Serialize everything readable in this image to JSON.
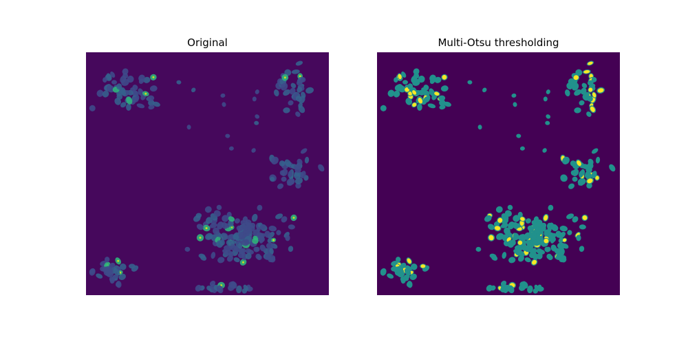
{
  "figure": {
    "panels": [
      {
        "title": "Original",
        "image": "fluorescence-nuclei-micrograph-viridis"
      },
      {
        "title": "Multi-Otsu thresholding",
        "image": "three-class-segmentation-map"
      }
    ]
  },
  "colors": {
    "background_class": "#440154",
    "raw_background": "#46085c",
    "raw_nucleus_dim": "#3e4a89",
    "raw_nucleus_mid": "#35608d",
    "raw_nucleus_bright": "#2fb47c",
    "raw_spot_max": "#c8e020",
    "middle_class": "#21918c",
    "upper_class": "#fde725"
  }
}
